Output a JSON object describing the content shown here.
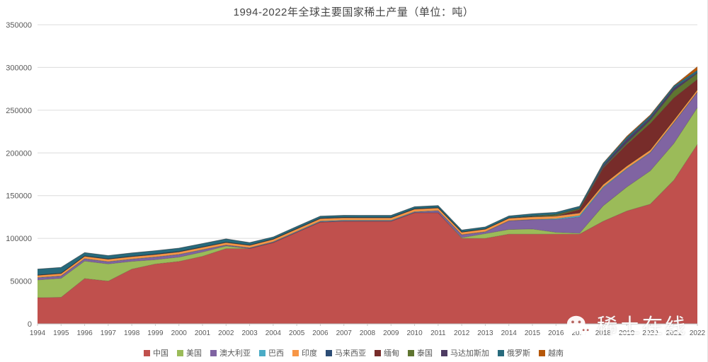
{
  "page": {
    "title": "1994-2022年全球主要国家稀土产量（单位：吨）"
  },
  "watermark": {
    "text": "稀土在线",
    "logo": "wechat-logo-icon"
  },
  "chart_data": {
    "type": "area",
    "stacked": true,
    "title": "1994-2022年全球主要国家稀土产量（单位：吨）",
    "unit": "吨",
    "x": [
      1994,
      1995,
      1996,
      1997,
      1998,
      1999,
      2000,
      2001,
      2002,
      2003,
      2004,
      2005,
      2006,
      2007,
      2008,
      2009,
      2010,
      2011,
      2012,
      2013,
      2014,
      2015,
      2016,
      2017,
      2018,
      2019,
      2020,
      2021,
      2022
    ],
    "ylim": [
      0,
      350000
    ],
    "yticks": [
      0,
      50000,
      100000,
      150000,
      200000,
      250000,
      300000,
      350000
    ],
    "grid": true,
    "legend_position": "bottom",
    "series": [
      {
        "name": "中国",
        "color": "#C0504D",
        "values": [
          30600,
          31000,
          53000,
          50000,
          64000,
          70000,
          73000,
          79000,
          88000,
          88000,
          95000,
          107000,
          119000,
          120000,
          120000,
          120000,
          130000,
          130000,
          100000,
          100000,
          105000,
          105000,
          105000,
          105000,
          120000,
          132000,
          140000,
          168000,
          210000
        ]
      },
      {
        "name": "美国",
        "color": "#9BBB59",
        "values": [
          20700,
          22200,
          20400,
          20000,
          9000,
          5000,
          5000,
          5000,
          3000,
          0,
          0,
          0,
          0,
          0,
          0,
          0,
          0,
          0,
          800,
          5500,
          5400,
          5900,
          2000,
          1000,
          18000,
          28000,
          39000,
          43000,
          43000
        ]
      },
      {
        "name": "澳大利亚",
        "color": "#8064A2",
        "values": [
          2500,
          2500,
          2500,
          2500,
          2500,
          3000,
          3000,
          2500,
          1000,
          700,
          700,
          700,
          600,
          600,
          600,
          600,
          700,
          2200,
          3200,
          2000,
          10000,
          11000,
          15000,
          19000,
          21000,
          21000,
          21000,
          24000,
          18000
        ]
      },
      {
        "name": "巴西",
        "color": "#4BACC6",
        "values": [
          400,
          400,
          400,
          300,
          300,
          300,
          300,
          300,
          300,
          300,
          400,
          500,
          700,
          700,
          600,
          600,
          600,
          300,
          300,
          300,
          200,
          200,
          1100,
          1700,
          1100,
          700,
          600,
          500,
          80
        ]
      },
      {
        "name": "印度",
        "color": "#F79646",
        "values": [
          2500,
          2700,
          2700,
          2700,
          2700,
          2700,
          2700,
          2700,
          2700,
          2700,
          2700,
          2700,
          2700,
          2700,
          2700,
          2700,
          2800,
          3000,
          2900,
          2900,
          2900,
          2900,
          2900,
          2900,
          2900,
          2900,
          2900,
          2900,
          2900
        ]
      },
      {
        "name": "马来西亚",
        "color": "#2C4D75",
        "values": [
          240,
          150,
          250,
          300,
          350,
          450,
          450,
          350,
          300,
          250,
          250,
          400,
          400,
          400,
          400,
          400,
          350,
          280,
          100,
          180,
          200,
          500,
          300,
          180,
          0,
          0,
          0,
          0,
          80
        ]
      },
      {
        "name": "缅甸",
        "color": "#772C2A",
        "values": [
          0,
          0,
          0,
          0,
          0,
          0,
          0,
          0,
          0,
          0,
          0,
          0,
          0,
          0,
          0,
          0,
          0,
          0,
          0,
          0,
          0,
          0,
          0,
          4000,
          19000,
          25000,
          31000,
          26000,
          12000
        ]
      },
      {
        "name": "泰国",
        "color": "#5F7530",
        "values": [
          160,
          160,
          160,
          160,
          160,
          160,
          160,
          160,
          160,
          160,
          160,
          160,
          160,
          160,
          160,
          160,
          160,
          160,
          100,
          100,
          100,
          800,
          1600,
          1300,
          1000,
          1900,
          3600,
          8200,
          7100
        ]
      },
      {
        "name": "马达加斯加",
        "color": "#4D3B62",
        "values": [
          0,
          0,
          0,
          0,
          0,
          0,
          0,
          0,
          0,
          0,
          0,
          0,
          0,
          0,
          0,
          0,
          0,
          0,
          0,
          0,
          0,
          0,
          0,
          0,
          2000,
          4000,
          2800,
          3200,
          960
        ]
      },
      {
        "name": "俄罗斯",
        "color": "#276A7C",
        "values": [
          7000,
          7000,
          4000,
          4000,
          4000,
          4000,
          4000,
          4000,
          4000,
          3000,
          2500,
          2500,
          2500,
          2500,
          2500,
          2500,
          2500,
          2500,
          2400,
          2500,
          2500,
          2600,
          2600,
          2600,
          2700,
          2700,
          2700,
          2600,
          2600
        ]
      },
      {
        "name": "越南",
        "color": "#B65708",
        "values": [
          0,
          0,
          0,
          0,
          0,
          0,
          0,
          0,
          0,
          0,
          0,
          0,
          0,
          0,
          0,
          0,
          0,
          0,
          0,
          0,
          0,
          0,
          0,
          0,
          400,
          1300,
          1000,
          400,
          4300
        ]
      }
    ]
  }
}
